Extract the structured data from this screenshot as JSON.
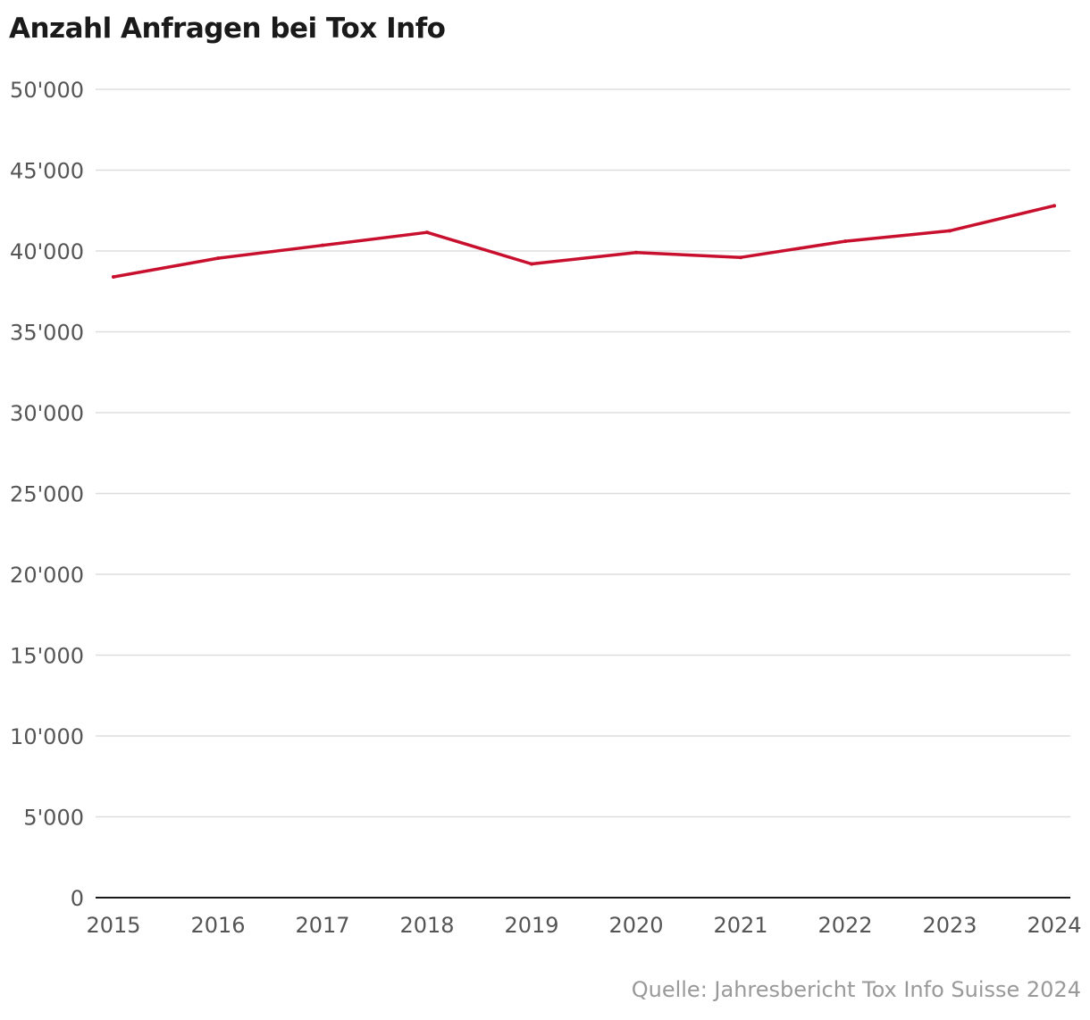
{
  "chart_data": {
    "type": "line",
    "title": "Anzahl Anfragen bei Tox Info",
    "xlabel": "",
    "ylabel": "",
    "x": [
      "2015",
      "2016",
      "2017",
      "2018",
      "2019",
      "2020",
      "2021",
      "2022",
      "2023",
      "2024"
    ],
    "series": [
      {
        "values": [
          38400,
          39550,
          40350,
          41150,
          39200,
          39900,
          39600,
          40600,
          41250,
          42800
        ],
        "color": "#c8102e"
      }
    ],
    "ylim": [
      0,
      50000
    ],
    "yticks": [
      0,
      5000,
      10000,
      15000,
      20000,
      25000,
      30000,
      35000,
      40000,
      45000,
      50000
    ],
    "ytick_labels": [
      "0",
      "5'000",
      "10'000",
      "15'000",
      "20'000",
      "25'000",
      "30'000",
      "35'000",
      "40'000",
      "45'000",
      "50'000"
    ],
    "grid": true,
    "legend": "none",
    "source": "Quelle: Jahresbericht Tox Info Suisse 2024"
  }
}
